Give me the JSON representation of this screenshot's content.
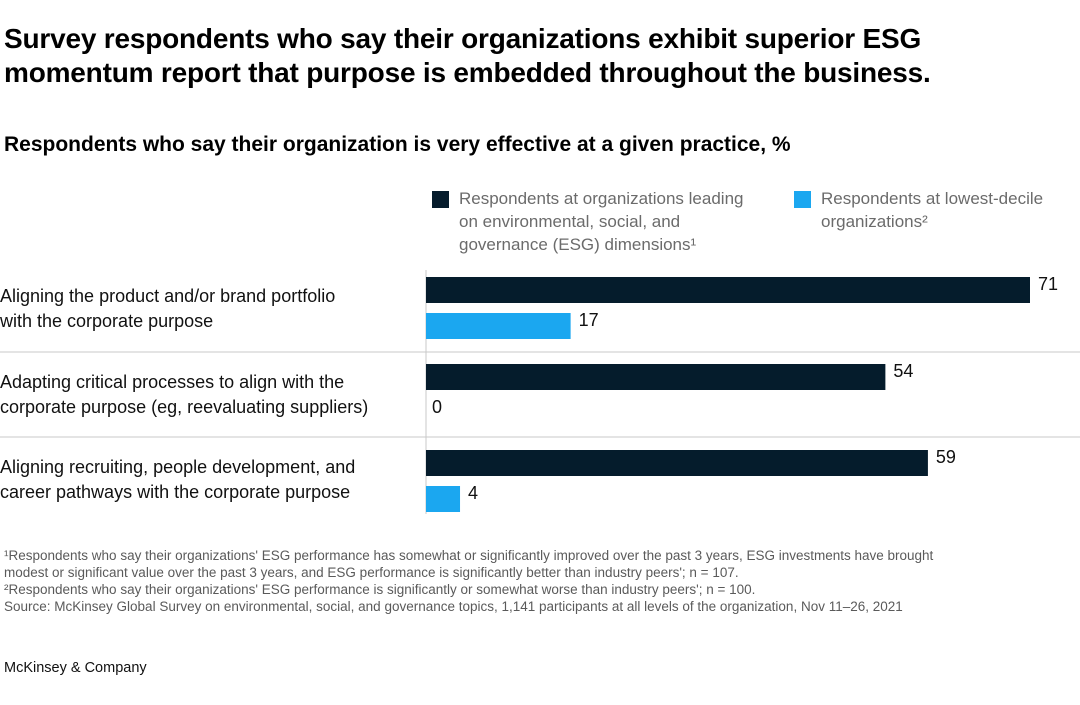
{
  "chart_data": {
    "type": "bar",
    "orientation": "horizontal",
    "title": "Survey respondents who say their organizations exhibit superior ESG momentum report that purpose is embedded throughout the business.",
    "subtitle": "Respondents who say their organization is very effective at a given practice, %",
    "categories": [
      [
        "Aligning the product and/or brand portfolio",
        "with the corporate purpose"
      ],
      [
        "Adapting critical processes to align with the",
        "corporate purpose (eg, reevaluating suppliers)"
      ],
      [
        "Aligning recruiting, people development, and",
        "career pathways with the corporate purpose"
      ]
    ],
    "series": [
      {
        "name": [
          "Respondents at organizations leading",
          "on environmental, social, and",
          "governance (ESG) dimensions¹"
        ],
        "color": "#051c2c",
        "values": [
          71,
          54,
          59
        ]
      },
      {
        "name": [
          "Respondents at lowest-decile",
          "organizations²"
        ],
        "color": "#1ba7f0",
        "values": [
          17,
          0,
          4
        ]
      }
    ],
    "xlim": [
      0,
      71
    ],
    "legend_position": "top-right"
  },
  "footnotes": [
    "¹Respondents who say their organizations' ESG performance has somewhat or significantly improved over the past 3 years, ESG investments have brought",
    "  modest or significant value over the past 3 years, and ESG performance is significantly better than industry peers'; n = 107.",
    "²Respondents who say their organizations' ESG performance is significantly or somewhat worse than industry peers'; n = 100.",
    " Source: McKinsey Global Survey on environmental, social, and governance topics, 1,141 participants at all levels of the organization, Nov 11–26, 2021"
  ],
  "brand": "McKinsey & Company"
}
